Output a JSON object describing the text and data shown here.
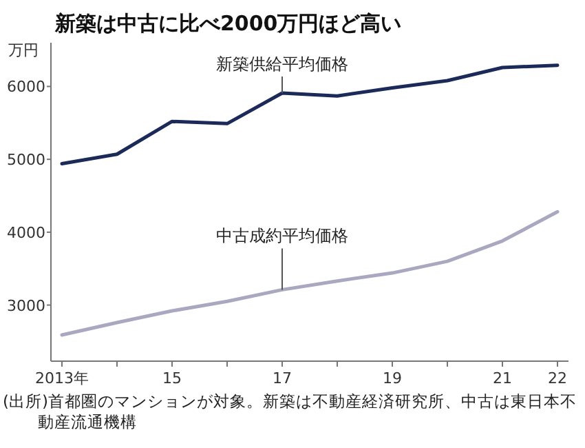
{
  "chart_data": {
    "type": "line",
    "title": "新築は中古に比べ2000万円ほど高い",
    "ylabel": "万円",
    "x": [
      2013,
      2014,
      2015,
      2016,
      2017,
      2018,
      2019,
      2020,
      2021,
      2022
    ],
    "series": [
      {
        "name": "新築供給平均価格",
        "color": "#1c2a5a",
        "values": [
          4940,
          5070,
          5520,
          5490,
          5910,
          5870,
          5980,
          6080,
          6260,
          6290
        ]
      },
      {
        "name": "中古成約平均価格",
        "color": "#a9a8c0",
        "values": [
          2590,
          2760,
          2920,
          3050,
          3210,
          3330,
          3440,
          3600,
          3880,
          4280
        ]
      }
    ],
    "xlim": [
      2012.8,
      2022.2
    ],
    "xticks": [
      {
        "value": 2013,
        "label": "2013年"
      },
      {
        "value": 2014,
        "label": null
      },
      {
        "value": 2015,
        "label": "15"
      },
      {
        "value": 2016,
        "label": null
      },
      {
        "value": 2017,
        "label": "17"
      },
      {
        "value": 2018,
        "label": null
      },
      {
        "value": 2019,
        "label": "19"
      },
      {
        "value": 2020,
        "label": null
      },
      {
        "value": 2021,
        "label": "21"
      },
      {
        "value": 2022,
        "label": "22"
      }
    ],
    "ylim": [
      2230,
      6600
    ],
    "yticks": [
      3000,
      4000,
      5000,
      6000
    ],
    "grid": false,
    "legend": false,
    "marker": "none",
    "line_style": "solid",
    "annotations": [
      "(出所)首都圏のマンションが対象。新築は不動産経済研究所、中古は東日本不動産流通機構"
    ]
  }
}
